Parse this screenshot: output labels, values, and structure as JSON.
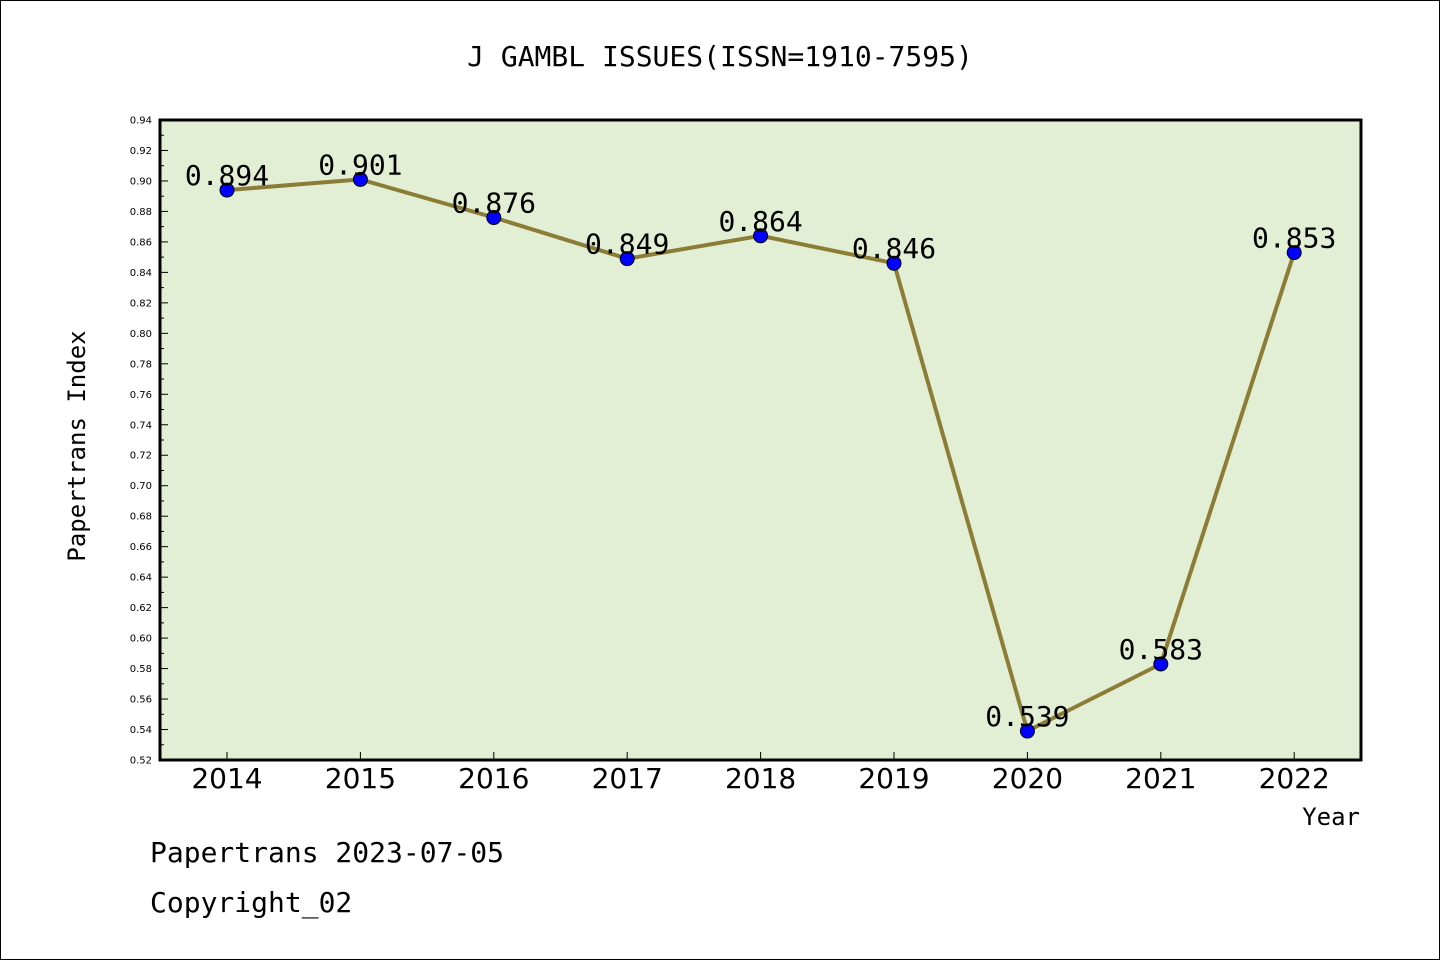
{
  "chart_data": {
    "type": "line",
    "title": "J GAMBL ISSUES(ISSN=1910-7595)",
    "xlabel": "Year",
    "ylabel": "Papertrans Index",
    "x": [
      "2014",
      "2015",
      "2016",
      "2017",
      "2018",
      "2019",
      "2020",
      "2021",
      "2022"
    ],
    "series": [
      {
        "values": [
          0.894,
          0.901,
          0.876,
          0.849,
          0.864,
          0.846,
          0.539,
          0.583,
          0.853
        ]
      }
    ],
    "data_labels": [
      "0.894",
      "0.901",
      "0.876",
      "0.849",
      "0.864",
      "0.846",
      "0.539",
      "0.583",
      "0.853"
    ],
    "ylim": [
      0.52,
      0.94
    ],
    "yticks": [
      "0.52",
      "0.54",
      "0.56",
      "0.58",
      "0.60",
      "0.62",
      "0.64",
      "0.66",
      "0.68",
      "0.70",
      "0.72",
      "0.74",
      "0.76",
      "0.78",
      "0.80",
      "0.82",
      "0.84",
      "0.86",
      "0.88",
      "0.90",
      "0.92",
      "0.94"
    ],
    "grid": false,
    "colors": {
      "plot_background": "#e2efd5",
      "line": "#8b7d35",
      "marker": "#0000ff"
    }
  },
  "footer": {
    "line1": "Papertrans 2023-07-05",
    "line2": "Copyright_02"
  }
}
